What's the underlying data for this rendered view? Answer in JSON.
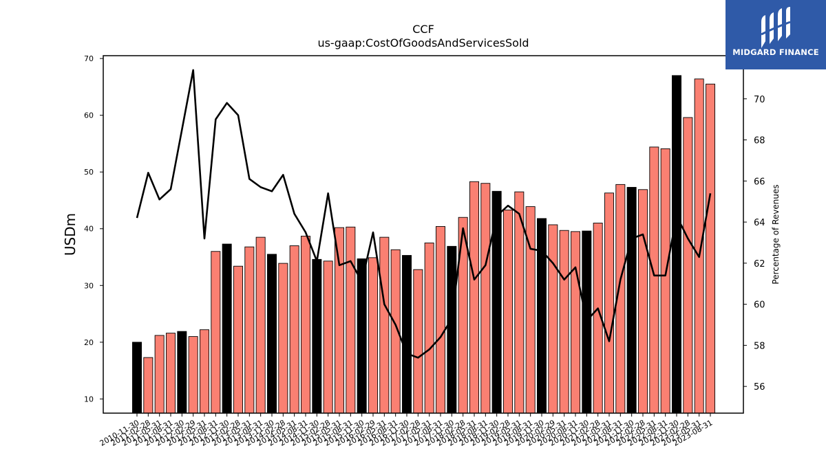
{
  "logo": {
    "text": "MIDGARD FINANCE"
  },
  "chart_data": {
    "type": "bar",
    "title": "CCF",
    "subtitle": "us-gaap:CostOfGoodsAndServicesSold",
    "ylabel": "USDm",
    "y2label": "Percentage of Revenues",
    "ylim": [
      7.5,
      70.5
    ],
    "y2lim": [
      54.7,
      72.1
    ],
    "yticks": [
      10,
      20,
      30,
      40,
      50,
      60,
      70
    ],
    "y2ticks": [
      56,
      58,
      60,
      62,
      64,
      66,
      68,
      70
    ],
    "categories": [
      "2010-11-30",
      "2011-02-28",
      "2011-05-31",
      "2011-08-31",
      "2011-11-30",
      "2012-02-29",
      "2012-05-31",
      "2012-08-31",
      "2012-11-30",
      "2013-02-28",
      "2013-05-31",
      "2013-08-31",
      "2013-11-30",
      "2014-02-28",
      "2014-05-31",
      "2014-08-31",
      "2014-11-30",
      "2015-02-28",
      "2015-05-31",
      "2015-08-31",
      "2015-11-30",
      "2016-02-29",
      "2016-05-31",
      "2016-08-31",
      "2016-11-30",
      "2017-02-28",
      "2017-05-31",
      "2017-08-31",
      "2017-11-30",
      "2018-02-28",
      "2018-05-31",
      "2018-08-31",
      "2018-11-30",
      "2019-02-28",
      "2019-05-31",
      "2019-08-31",
      "2019-11-30",
      "2020-02-29",
      "2020-05-31",
      "2020-08-31",
      "2020-11-30",
      "2021-02-28",
      "2021-05-31",
      "2021-08-31",
      "2021-11-30",
      "2022-02-28",
      "2022-05-31",
      "2022-08-31",
      "2022-11-30",
      "2023-02-28",
      "2023-05-31",
      "2023-08-31"
    ],
    "series": [
      {
        "name": "",
        "kind": "bar",
        "values": [
          20.0,
          17.3,
          21.2,
          21.6,
          21.9,
          21.0,
          22.2,
          36.0,
          37.3,
          33.4,
          36.8,
          38.5,
          35.5,
          33.9,
          37.0,
          38.7,
          34.6,
          34.3,
          40.2,
          40.3,
          34.7,
          34.9,
          38.5,
          36.3,
          35.3,
          32.8,
          37.5,
          40.4,
          36.9,
          42.0,
          48.3,
          48.0,
          46.6,
          43.3,
          46.5,
          43.9,
          41.8,
          40.7,
          39.7,
          39.5,
          39.6,
          41.0,
          46.3,
          47.8,
          47.3,
          46.9,
          54.4,
          54.1,
          67.0,
          59.6,
          66.4,
          65.5
        ]
      },
      {
        "name": "",
        "kind": "line",
        "axis": "right",
        "values": [
          64.2,
          66.4,
          65.1,
          65.6,
          68.5,
          71.4,
          63.2,
          69.0,
          69.8,
          69.2,
          66.1,
          65.7,
          65.5,
          66.3,
          64.4,
          63.5,
          62.1,
          65.4,
          61.9,
          62.1,
          61.1,
          63.5,
          60.0,
          59.0,
          57.6,
          57.4,
          57.8,
          58.4,
          59.3,
          63.7,
          61.2,
          61.9,
          64.3,
          64.8,
          64.4,
          62.7,
          62.6,
          62.0,
          61.2,
          61.8,
          59.2,
          59.8,
          58.2,
          61.2,
          63.2,
          63.4,
          61.4,
          61.4,
          64.3,
          63.2,
          62.3,
          65.4
        ]
      }
    ],
    "highlight_every": 4,
    "colors": {
      "bar": "#fa8072",
      "bar_highlight": "#000000",
      "line": "#000000",
      "edge": "#000000"
    },
    "grid": false,
    "legend": "none"
  }
}
